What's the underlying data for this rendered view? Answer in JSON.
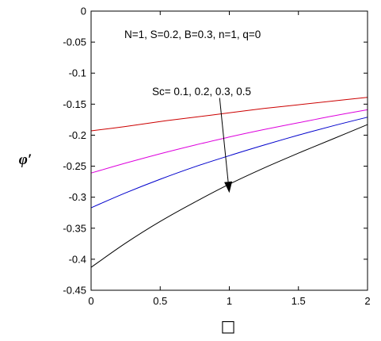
{
  "chart_data": {
    "type": "line",
    "ylabel": "φ′",
    "xlabel": "□",
    "xlim": [
      0,
      2
    ],
    "ylim": [
      -0.45,
      0
    ],
    "xticks": [
      {
        "value": 0,
        "label": "0"
      },
      {
        "value": 0.5,
        "label": "0.5"
      },
      {
        "value": 1,
        "label": "1"
      },
      {
        "value": 1.5,
        "label": "1.5"
      },
      {
        "value": 2,
        "label": "2"
      }
    ],
    "yticks": [
      {
        "value": 0,
        "label": "0"
      },
      {
        "value": -0.05,
        "label": "-0.05"
      },
      {
        "value": -0.1,
        "label": "-0.1"
      },
      {
        "value": -0.15,
        "label": "-0.15"
      },
      {
        "value": -0.2,
        "label": "-0.2"
      },
      {
        "value": -0.25,
        "label": "-0.25"
      },
      {
        "value": -0.3,
        "label": "-0.3"
      },
      {
        "value": -0.35,
        "label": "-0.35"
      },
      {
        "value": -0.4,
        "label": "-0.4"
      },
      {
        "value": -0.45,
        "label": "-0.45"
      }
    ],
    "grid": false,
    "annotations": [
      {
        "text": "N=1, S=0.2, B=0.3, n=1, q=0"
      },
      {
        "text": "Sc= 0.1, 0.2, 0.3, 0.5"
      }
    ],
    "arrow": {
      "from": [
        0.93,
        -0.14
      ],
      "to": [
        1.0,
        -0.293
      ]
    },
    "series": [
      {
        "color": "#cc0000",
        "x": [
          0,
          0.25,
          0.5,
          0.75,
          1,
          1.25,
          1.5,
          1.75,
          2
        ],
        "y": [
          -0.193,
          -0.186,
          -0.178,
          -0.171,
          -0.164,
          -0.157,
          -0.151,
          -0.145,
          -0.139
        ]
      },
      {
        "color": "#dd00dd",
        "x": [
          0,
          0.25,
          0.5,
          0.75,
          1,
          1.25,
          1.5,
          1.75,
          2
        ],
        "y": [
          -0.261,
          -0.245,
          -0.23,
          -0.216,
          -0.203,
          -0.191,
          -0.18,
          -0.169,
          -0.159
        ]
      },
      {
        "color": "#0000cc",
        "x": [
          0,
          0.25,
          0.5,
          0.75,
          1,
          1.25,
          1.5,
          1.75,
          2
        ],
        "y": [
          -0.317,
          -0.293,
          -0.271,
          -0.251,
          -0.233,
          -0.216,
          -0.2,
          -0.185,
          -0.171
        ]
      },
      {
        "color": "#000000",
        "x": [
          0,
          0.25,
          0.5,
          0.75,
          1,
          1.25,
          1.5,
          1.75,
          2
        ],
        "y": [
          -0.413,
          -0.374,
          -0.339,
          -0.308,
          -0.279,
          -0.253,
          -0.229,
          -0.206,
          -0.183
        ]
      }
    ]
  }
}
